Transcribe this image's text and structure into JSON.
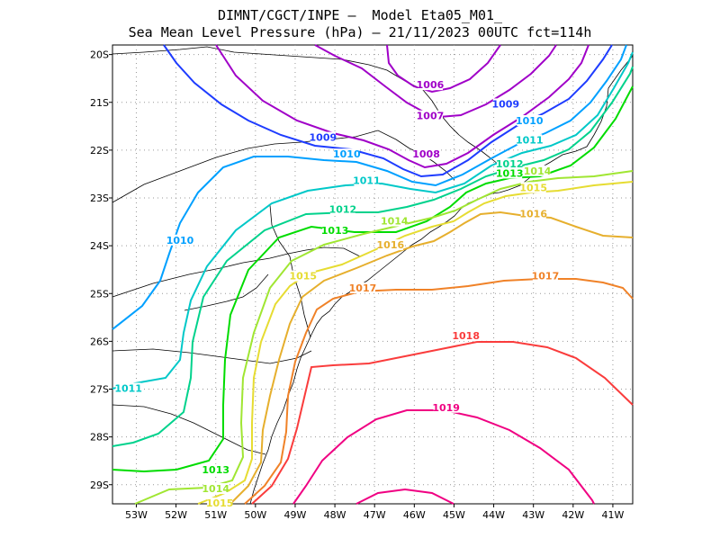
{
  "title": {
    "line1": "DIMNT/CGCT/INPE –  Model Eta05_M01_",
    "line2": "Sea Mean Level Pressure (hPa) – 21/11/2023 00UTC fct=114h"
  },
  "axes": {
    "lon_labels": [
      "53W",
      "52W",
      "51W",
      "50W",
      "49W",
      "48W",
      "47W",
      "46W",
      "45W",
      "44W",
      "43W",
      "42W",
      "41W"
    ],
    "lat_labels": [
      "20S",
      "21S",
      "22S",
      "23S",
      "24S",
      "25S",
      "26S",
      "27S",
      "28S",
      "29S"
    ]
  },
  "colors": {
    "1006": "#a000c8",
    "1007": "#a000c8",
    "1008": "#a000c8",
    "1009": "#1e3cff",
    "1010": "#00a0ff",
    "1011": "#00c8c8",
    "1012": "#00d28c",
    "1013": "#00dc00",
    "1014": "#a0e632",
    "1015": "#e6dc32",
    "1016": "#e6af2d",
    "1017": "#f08228",
    "1018": "#fa3c3c",
    "1019": "#f00082"
  },
  "contour_labels": [
    {
      "text": "1006",
      "lon": -45.6,
      "lat": -20.65
    },
    {
      "text": "1007",
      "lon": -45.6,
      "lat": -21.3
    },
    {
      "text": "1008",
      "lon": -45.7,
      "lat": -22.1
    },
    {
      "text": "1009",
      "lon": -43.7,
      "lat": -21.05
    },
    {
      "text": "1009",
      "lon": -48.3,
      "lat": -21.75
    },
    {
      "text": "1010",
      "lon": -43.1,
      "lat": -21.4
    },
    {
      "text": "1010",
      "lon": -47.7,
      "lat": -22.1
    },
    {
      "text": "1010",
      "lon": -51.9,
      "lat": -23.9
    },
    {
      "text": "1011",
      "lon": -43.1,
      "lat": -21.8
    },
    {
      "text": "1011",
      "lon": -47.2,
      "lat": -22.65
    },
    {
      "text": "1011",
      "lon": -53.2,
      "lat": -27.0
    },
    {
      "text": "1012",
      "lon": -43.6,
      "lat": -22.3
    },
    {
      "text": "1012",
      "lon": -47.8,
      "lat": -23.25
    },
    {
      "text": "1013",
      "lon": -43.6,
      "lat": -22.5
    },
    {
      "text": "1013",
      "lon": -48.0,
      "lat": -23.7
    },
    {
      "text": "1013",
      "lon": -51.0,
      "lat": -28.7
    },
    {
      "text": "1014",
      "lon": -42.9,
      "lat": -22.45
    },
    {
      "text": "1014",
      "lon": -46.5,
      "lat": -23.5
    },
    {
      "text": "1014",
      "lon": -51.0,
      "lat": -29.1
    },
    {
      "text": "1015",
      "lon": -43.0,
      "lat": -22.8
    },
    {
      "text": "1015",
      "lon": -48.8,
      "lat": -24.65
    },
    {
      "text": "1015",
      "lon": -50.9,
      "lat": -29.4
    },
    {
      "text": "1016",
      "lon": -43.0,
      "lat": -23.35
    },
    {
      "text": "1016",
      "lon": -46.6,
      "lat": -24.0
    },
    {
      "text": "1017",
      "lon": -42.7,
      "lat": -24.65
    },
    {
      "text": "1017",
      "lon": -47.3,
      "lat": -24.9
    },
    {
      "text": "1018",
      "lon": -44.7,
      "lat": -25.9
    },
    {
      "text": "1019",
      "lon": -45.2,
      "lat": -27.4
    }
  ]
}
